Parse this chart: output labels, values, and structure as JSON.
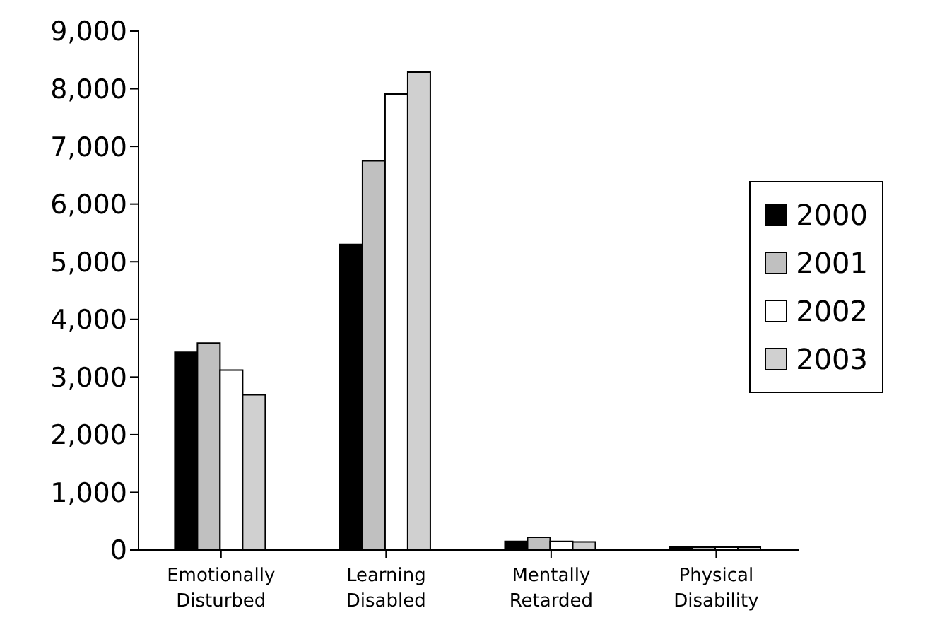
{
  "chart_data": {
    "type": "bar",
    "categories": [
      "Emotionally Disturbed",
      "Learning Disabled",
      "Mentally Retarded",
      "Physical Disability"
    ],
    "series": [
      {
        "name": "2000",
        "color": "#000000",
        "values": [
          3430,
          5300,
          150,
          50
        ]
      },
      {
        "name": "2001",
        "color": "#c0c0c0",
        "values": [
          3590,
          6750,
          220,
          50
        ]
      },
      {
        "name": "2002",
        "color": "#ffffff",
        "values": [
          3120,
          7910,
          150,
          50
        ]
      },
      {
        "name": "2003",
        "color": "#d0d0d0",
        "values": [
          2690,
          8290,
          140,
          50
        ]
      }
    ],
    "ylim": [
      0,
      9000
    ],
    "yticks": [
      0,
      {
        "value": 1000,
        "label": "1,000"
      },
      {
        "value": 2000,
        "label": "2,000"
      },
      {
        "value": 3000,
        "label": "3,000"
      },
      {
        "value": 4000,
        "label": "4,000"
      },
      {
        "value": 5000,
        "label": "5,000"
      },
      {
        "value": 6000,
        "label": "6,000"
      },
      {
        "value": 7000,
        "label": "7,000"
      },
      {
        "value": 8000,
        "label": "8,000"
      },
      {
        "value": 9000,
        "label": "9,000"
      }
    ],
    "grid": false,
    "legend": "right"
  }
}
